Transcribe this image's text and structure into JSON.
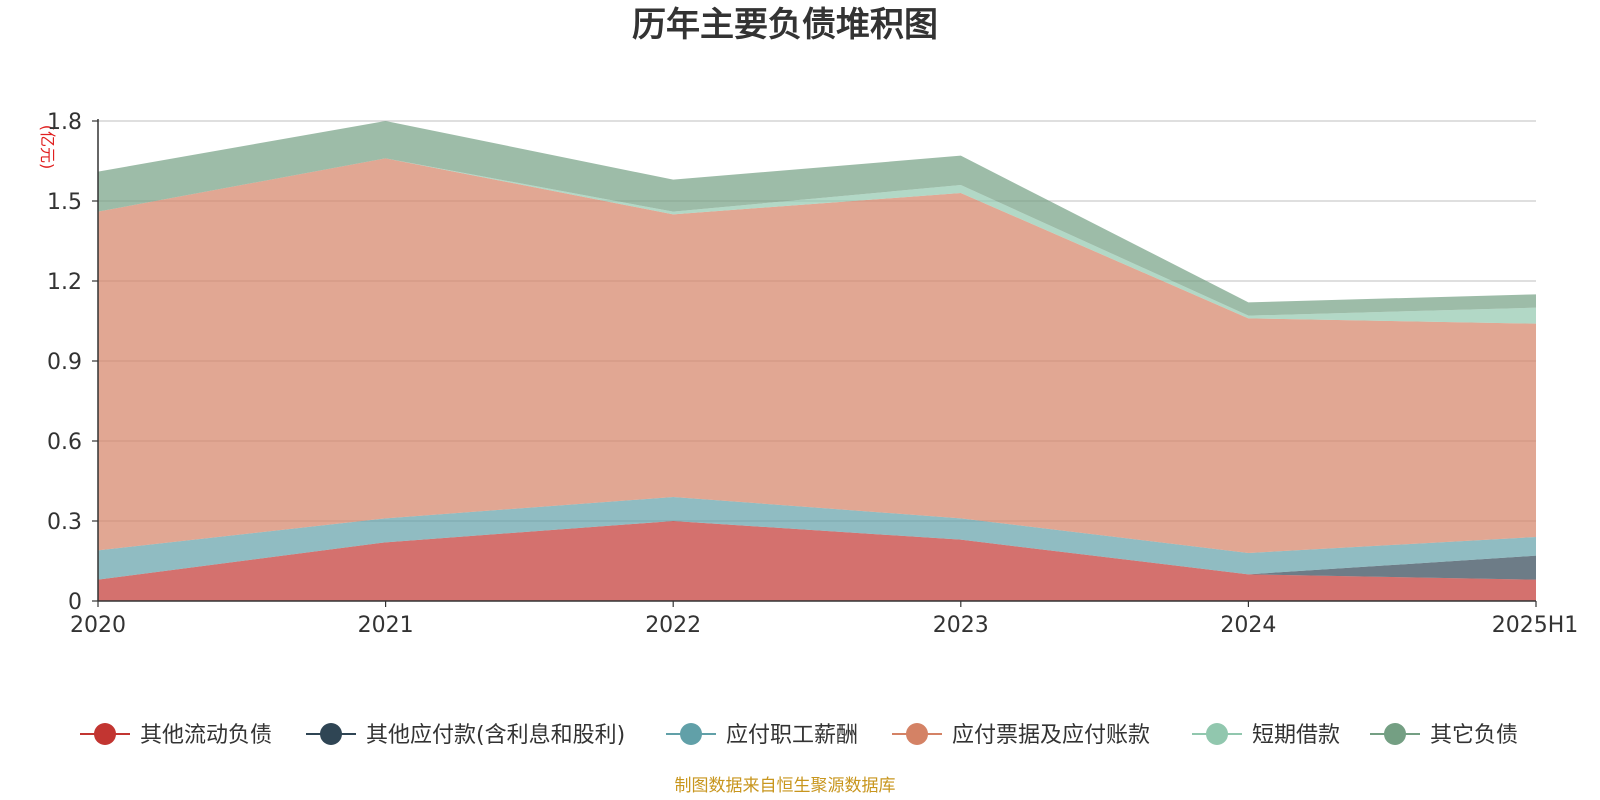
{
  "chart_data": {
    "type": "area",
    "stacked": true,
    "title": "历年主要负债堆积图",
    "unit_label": "(亿元)",
    "categories": [
      "2020",
      "2021",
      "2022",
      "2023",
      "2024",
      "2025H1"
    ],
    "y_ticks": [
      "0",
      "0.3",
      "0.6",
      "0.9",
      "1.2",
      "1.5",
      "1.8"
    ],
    "ylim": [
      0,
      1.8
    ],
    "grid": true,
    "legend_position": "bottom",
    "series": [
      {
        "name": "其他流动负债",
        "color": "#c23531",
        "values": [
          0.08,
          0.22,
          0.3,
          0.23,
          0.1,
          0.08
        ]
      },
      {
        "name": "其他应付款(含利息和股利)",
        "color": "#2f4554",
        "values": [
          0.0,
          0.0,
          0.0,
          0.0,
          0.0,
          0.09
        ]
      },
      {
        "name": "应付职工薪酬",
        "color": "#61a0a8",
        "values": [
          0.11,
          0.09,
          0.09,
          0.08,
          0.08,
          0.07
        ]
      },
      {
        "name": "应付票据及应付账款",
        "color": "#d48265",
        "values": [
          1.27,
          1.35,
          1.06,
          1.22,
          0.88,
          0.8
        ]
      },
      {
        "name": "短期借款",
        "color": "#91c7ae",
        "values": [
          0.0,
          0.0,
          0.01,
          0.03,
          0.01,
          0.06
        ]
      },
      {
        "name": "其它负债",
        "color": "#749f83",
        "values": [
          0.15,
          0.14,
          0.12,
          0.11,
          0.05,
          0.05
        ]
      }
    ]
  },
  "source_text": "制图数据来自恒生聚源数据库"
}
